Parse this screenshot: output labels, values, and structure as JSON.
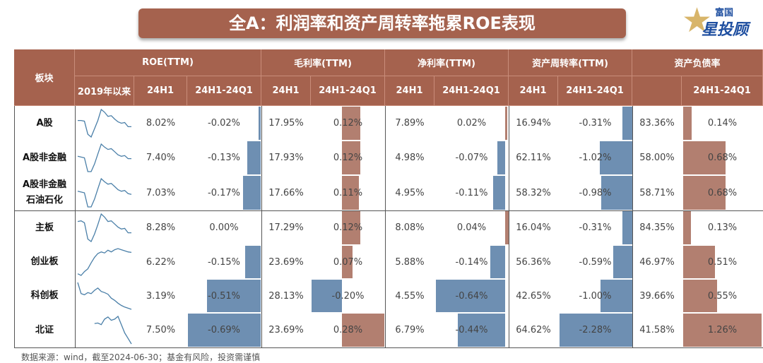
{
  "title": "全A：利润率和资产周转率拖累ROE表现",
  "logo": {
    "text_top": "富国",
    "text_main": "星投顾"
  },
  "colors": {
    "header": "#a5624e",
    "negative_bar": "#6e8fb2",
    "positive_bar": "#b27f70",
    "sparkline": "#4a7fa8"
  },
  "footer": "数据来源：wind，截至2024-06-30；基金有风险，投资需谨慎",
  "chart_data": {
    "type": "table",
    "row_header": "板块",
    "groups": [
      {
        "label": "ROE(TTM)",
        "cols": [
          "2019年以来",
          "24H1",
          "24H1-24Q1"
        ]
      },
      {
        "label": "毛利率(TTM)",
        "cols": [
          "24H1",
          "24H1-24Q1"
        ]
      },
      {
        "label": "净利率(TTM)",
        "cols": [
          "24H1",
          "24H1-24Q1"
        ]
      },
      {
        "label": "资产周转率(TTM)",
        "cols": [
          "24H1",
          "24H1-24Q1"
        ]
      },
      {
        "label": "资产负债率",
        "cols": [
          "",
          "24H1-24Q1"
        ]
      }
    ],
    "rows": [
      {
        "name": "A股",
        "spark": [
          7,
          7,
          6.9,
          5,
          4.6,
          5.8,
          7,
          8.6,
          8.2,
          7.6,
          7.7,
          7.2,
          6.8,
          6.6,
          6.7,
          6.1,
          6.1
        ],
        "roe": 8.02,
        "roe_d": -0.02,
        "gm": 17.95,
        "gm_d": 0.12,
        "nm": 7.89,
        "nm_d": 0.02,
        "at": 16.94,
        "at_d": -0.31,
        "dr": 83.36,
        "dr_d": 0.14
      },
      {
        "name": "A股非金融",
        "spark": [
          7,
          6.9,
          6.8,
          5,
          5,
          6,
          7.3,
          8.6,
          8.2,
          7.9,
          8,
          7.6,
          7.2,
          7,
          7.1,
          6.7,
          6.7
        ],
        "roe": 7.4,
        "roe_d": -0.13,
        "gm": 17.93,
        "gm_d": 0.12,
        "nm": 4.98,
        "nm_d": -0.07,
        "at": 62.11,
        "at_d": -1.02,
        "dr": 58.0,
        "dr_d": 0.68
      },
      {
        "name": "A股非金融石油石化",
        "spark": [
          7,
          6.9,
          6.8,
          5,
          5,
          6,
          7.3,
          8.6,
          8.2,
          7.9,
          8,
          7.6,
          7.2,
          7,
          7.1,
          6.7,
          6.6
        ],
        "roe": 7.03,
        "roe_d": -0.17,
        "gm": 17.66,
        "gm_d": 0.11,
        "nm": 4.95,
        "nm_d": -0.11,
        "at": 58.32,
        "at_d": -0.98,
        "dr": 58.71,
        "dr_d": 0.68
      },
      {
        "name": "主板",
        "spark": [
          7.8,
          7.9,
          7.6,
          5,
          4.6,
          5.8,
          7.3,
          9,
          8.5,
          7.8,
          7.9,
          7.4,
          6.9,
          6.6,
          6.7,
          6,
          6
        ],
        "roe": 8.28,
        "roe_d": 0.0,
        "gm": 17.29,
        "gm_d": 0.12,
        "nm": 8.08,
        "nm_d": 0.04,
        "at": 16.04,
        "at_d": -0.31,
        "dr": 84.35,
        "dr_d": 0.13
      },
      {
        "name": "创业板",
        "spark": [
          3,
          2.7,
          3.4,
          3.9,
          5,
          6,
          6.7,
          7,
          6.8,
          7.3,
          7,
          7.4,
          7.6,
          7.4,
          7.2,
          7,
          6.9
        ],
        "roe": 6.22,
        "roe_d": -0.15,
        "gm": 23.69,
        "gm_d": 0.07,
        "nm": 5.88,
        "nm_d": -0.14,
        "at": 56.36,
        "at_d": -0.59,
        "dr": 46.97,
        "dr_d": 0.51
      },
      {
        "name": "科创板",
        "spark": [
          9,
          7,
          6.8,
          7.2,
          7,
          7.6,
          8,
          7.4,
          7.2,
          6.9,
          6.2,
          5.8,
          5.3,
          4.9,
          4.6,
          4.4,
          4.2
        ],
        "roe": 3.19,
        "roe_d": -0.51,
        "gm": 28.13,
        "gm_d": -0.2,
        "nm": 4.55,
        "nm_d": -0.64,
        "at": 42.65,
        "at_d": -1.0,
        "dr": 39.66,
        "dr_d": 0.55
      },
      {
        "name": "北证",
        "spark": [
          null,
          null,
          null,
          null,
          null,
          8.2,
          8.3,
          8,
          9,
          9.4,
          8.8,
          9,
          9.5,
          8,
          6.5,
          5.5,
          4.5
        ],
        "roe": 7.5,
        "roe_d": -0.69,
        "gm": 23.69,
        "gm_d": 0.28,
        "nm": 6.79,
        "nm_d": -0.44,
        "at": 64.62,
        "at_d": -2.28,
        "dr": 41.58,
        "dr_d": 1.26
      }
    ]
  }
}
